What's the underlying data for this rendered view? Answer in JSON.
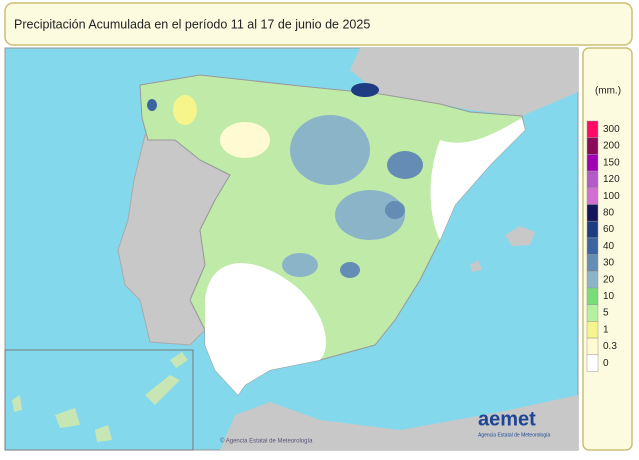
{
  "header": {
    "title": "Precipitación Acumulada en el período 11 al 17 de junio de 2025"
  },
  "legend": {
    "unit": "(mm.)",
    "levels": [
      {
        "label": "300",
        "color": "#ff0a64"
      },
      {
        "label": "200",
        "color": "#8c0a5a"
      },
      {
        "label": "150",
        "color": "#a000b4"
      },
      {
        "label": "120",
        "color": "#b45ac8"
      },
      {
        "label": "100",
        "color": "#d26ed2"
      },
      {
        "label": "80",
        "color": "#14145a"
      },
      {
        "label": "60",
        "color": "#1e3c82"
      },
      {
        "label": "40",
        "color": "#3c64a0"
      },
      {
        "label": "30",
        "color": "#648cb4"
      },
      {
        "label": "20",
        "color": "#8cb4c8"
      },
      {
        "label": "10",
        "color": "#78dc78"
      },
      {
        "label": "5",
        "color": "#b4f0a0"
      },
      {
        "label": "1",
        "color": "#f5f58c"
      },
      {
        "label": "0.3",
        "color": "#fffad2"
      },
      {
        "label": "0",
        "color": "#ffffff"
      }
    ]
  },
  "footer": {
    "logo": "aemet",
    "logo_subtitle": "Agencia Estatal de Meteorología",
    "credit": "© Agencia Estatal de Meteorología"
  }
}
